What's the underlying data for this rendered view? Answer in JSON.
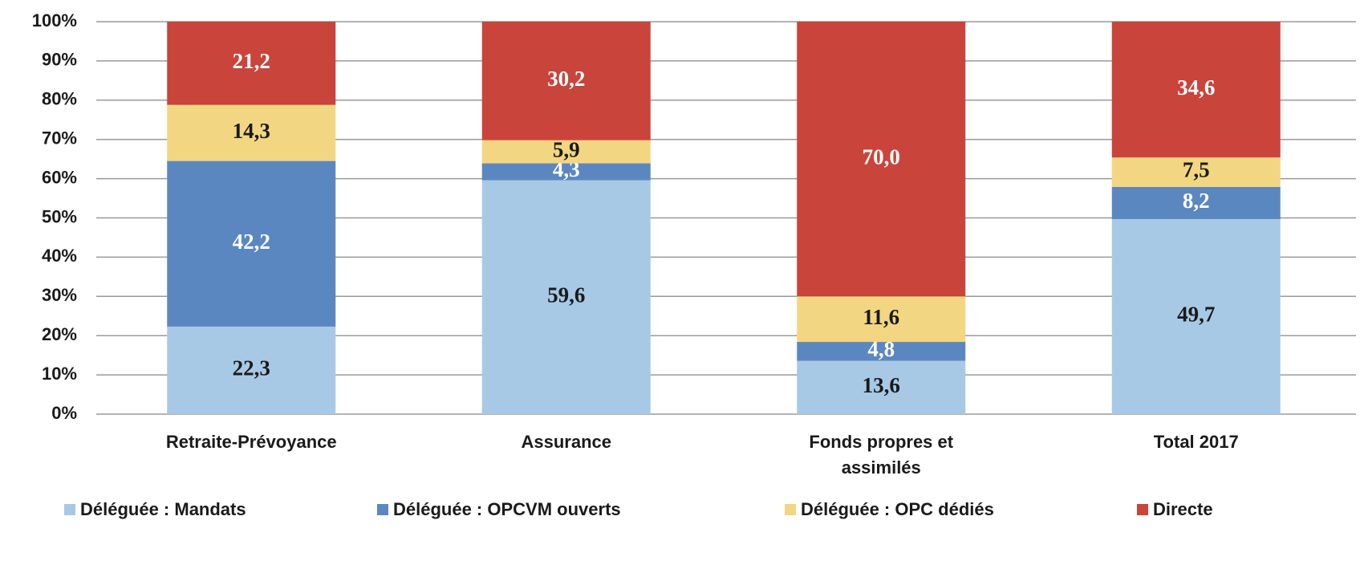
{
  "chart_data": {
    "type": "stacked_bar",
    "categories": [
      "Retraite-Prévoyance",
      "Assurance",
      "Fonds propres et assimilés",
      "Total 2017"
    ],
    "series": [
      {
        "name": "Déléguée : Mandats",
        "color": "#a7c9e5",
        "values": [
          22.3,
          59.6,
          13.6,
          49.7
        ],
        "value_labels": [
          "22,3",
          "59,6",
          "13,6",
          "49,7"
        ]
      },
      {
        "name": "Déléguée : OPCVM ouverts",
        "color": "#5b87c1",
        "values": [
          42.2,
          4.3,
          4.8,
          8.2
        ],
        "value_labels": [
          "42,2",
          "4,3",
          "4,8",
          "8,2"
        ]
      },
      {
        "name": "Déléguée : OPC dédiés",
        "color": "#f3d681",
        "values": [
          14.3,
          5.9,
          11.6,
          7.5
        ],
        "value_labels": [
          "14,3",
          "5,9",
          "11,6",
          "7,5"
        ]
      },
      {
        "name": "Directe",
        "color": "#c9443a",
        "values": [
          21.2,
          30.2,
          70.0,
          34.6
        ],
        "value_labels": [
          "21,2",
          "30,2",
          "70,0",
          "34,6"
        ]
      }
    ],
    "ylim": [
      0,
      100
    ],
    "yticks": [
      {
        "value": 0,
        "label": "0%"
      },
      {
        "value": 10,
        "label": "10%"
      },
      {
        "value": 20,
        "label": "20%"
      },
      {
        "value": 30,
        "label": "30%"
      },
      {
        "value": 40,
        "label": "40%"
      },
      {
        "value": 50,
        "label": "50%"
      },
      {
        "value": 60,
        "label": "60%"
      },
      {
        "value": 70,
        "label": "70%"
      },
      {
        "value": 80,
        "label": "80%"
      },
      {
        "value": 90,
        "label": "90%"
      },
      {
        "value": 100,
        "label": "100%"
      }
    ],
    "grid": true,
    "legend": "bottom"
  }
}
